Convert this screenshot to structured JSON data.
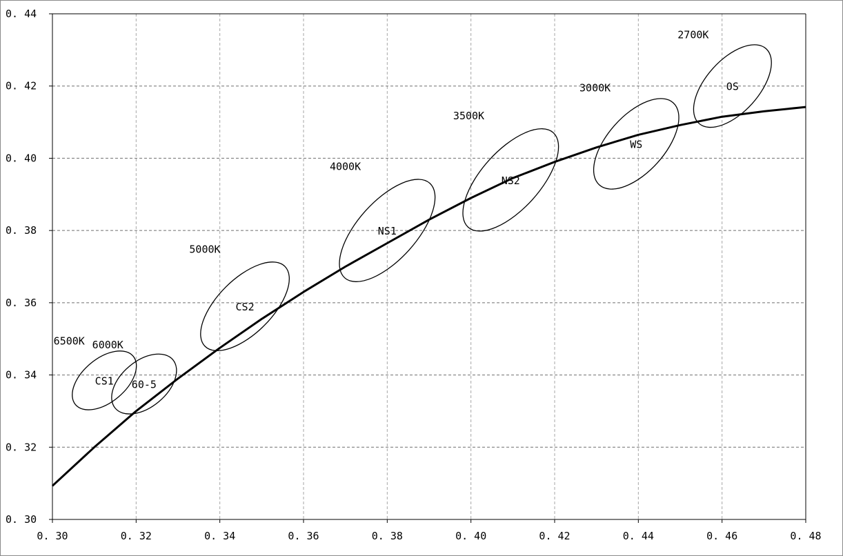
{
  "chart_data": {
    "type": "scatter",
    "title": "",
    "xlabel": "",
    "ylabel": "",
    "xlim": [
      0.3,
      0.48
    ],
    "ylim": [
      0.3,
      0.44
    ],
    "grid": true,
    "x_ticks": [
      "0.30",
      "0.32",
      "0.34",
      "0.36",
      "0.38",
      "0.40",
      "0.42",
      "0.44",
      "0.46",
      "0.48"
    ],
    "y_ticks": [
      "0.30",
      "0.32",
      "0.34",
      "0.36",
      "0.38",
      "0.40",
      "0.42",
      "0.44"
    ],
    "curve": {
      "x": [
        0.3,
        0.31,
        0.32,
        0.33,
        0.34,
        0.35,
        0.36,
        0.37,
        0.38,
        0.39,
        0.4,
        0.41,
        0.42,
        0.43,
        0.44,
        0.45,
        0.46,
        0.47,
        0.48
      ],
      "y": [
        0.3093,
        0.32,
        0.33,
        0.339,
        0.3475,
        0.3555,
        0.363,
        0.37,
        0.3765,
        0.383,
        0.389,
        0.3945,
        0.399,
        0.403,
        0.4065,
        0.4092,
        0.4115,
        0.413,
        0.4142
      ]
    },
    "ellipses": [
      {
        "code": "CS1",
        "cct": "6500K",
        "cx": 0.3124,
        "cy": 0.3385,
        "rx": 0.0052,
        "ry": 0.009,
        "angle": 50
      },
      {
        "code": "60-5",
        "cct": "6000K",
        "cx": 0.3219,
        "cy": 0.3375,
        "rx": 0.0055,
        "ry": 0.009,
        "angle": 50
      },
      {
        "code": "CS2",
        "cct": "5000K",
        "cx": 0.346,
        "cy": 0.359,
        "rx": 0.0065,
        "ry": 0.0135,
        "angle": 45
      },
      {
        "code": "NS1",
        "cct": "4000K",
        "cx": 0.38,
        "cy": 0.38,
        "rx": 0.007,
        "ry": 0.0152,
        "angle": 42
      },
      {
        "code": "NS2",
        "cct": "3500K",
        "cx": 0.4095,
        "cy": 0.394,
        "rx": 0.007,
        "ry": 0.0152,
        "angle": 42
      },
      {
        "code": "WS",
        "cct": "3000K",
        "cx": 0.4395,
        "cy": 0.404,
        "rx": 0.0068,
        "ry": 0.0132,
        "angle": 42
      },
      {
        "code": "OS",
        "cct": "2700K",
        "cx": 0.4625,
        "cy": 0.42,
        "rx": 0.0063,
        "ry": 0.012,
        "angle": 42
      }
    ]
  }
}
